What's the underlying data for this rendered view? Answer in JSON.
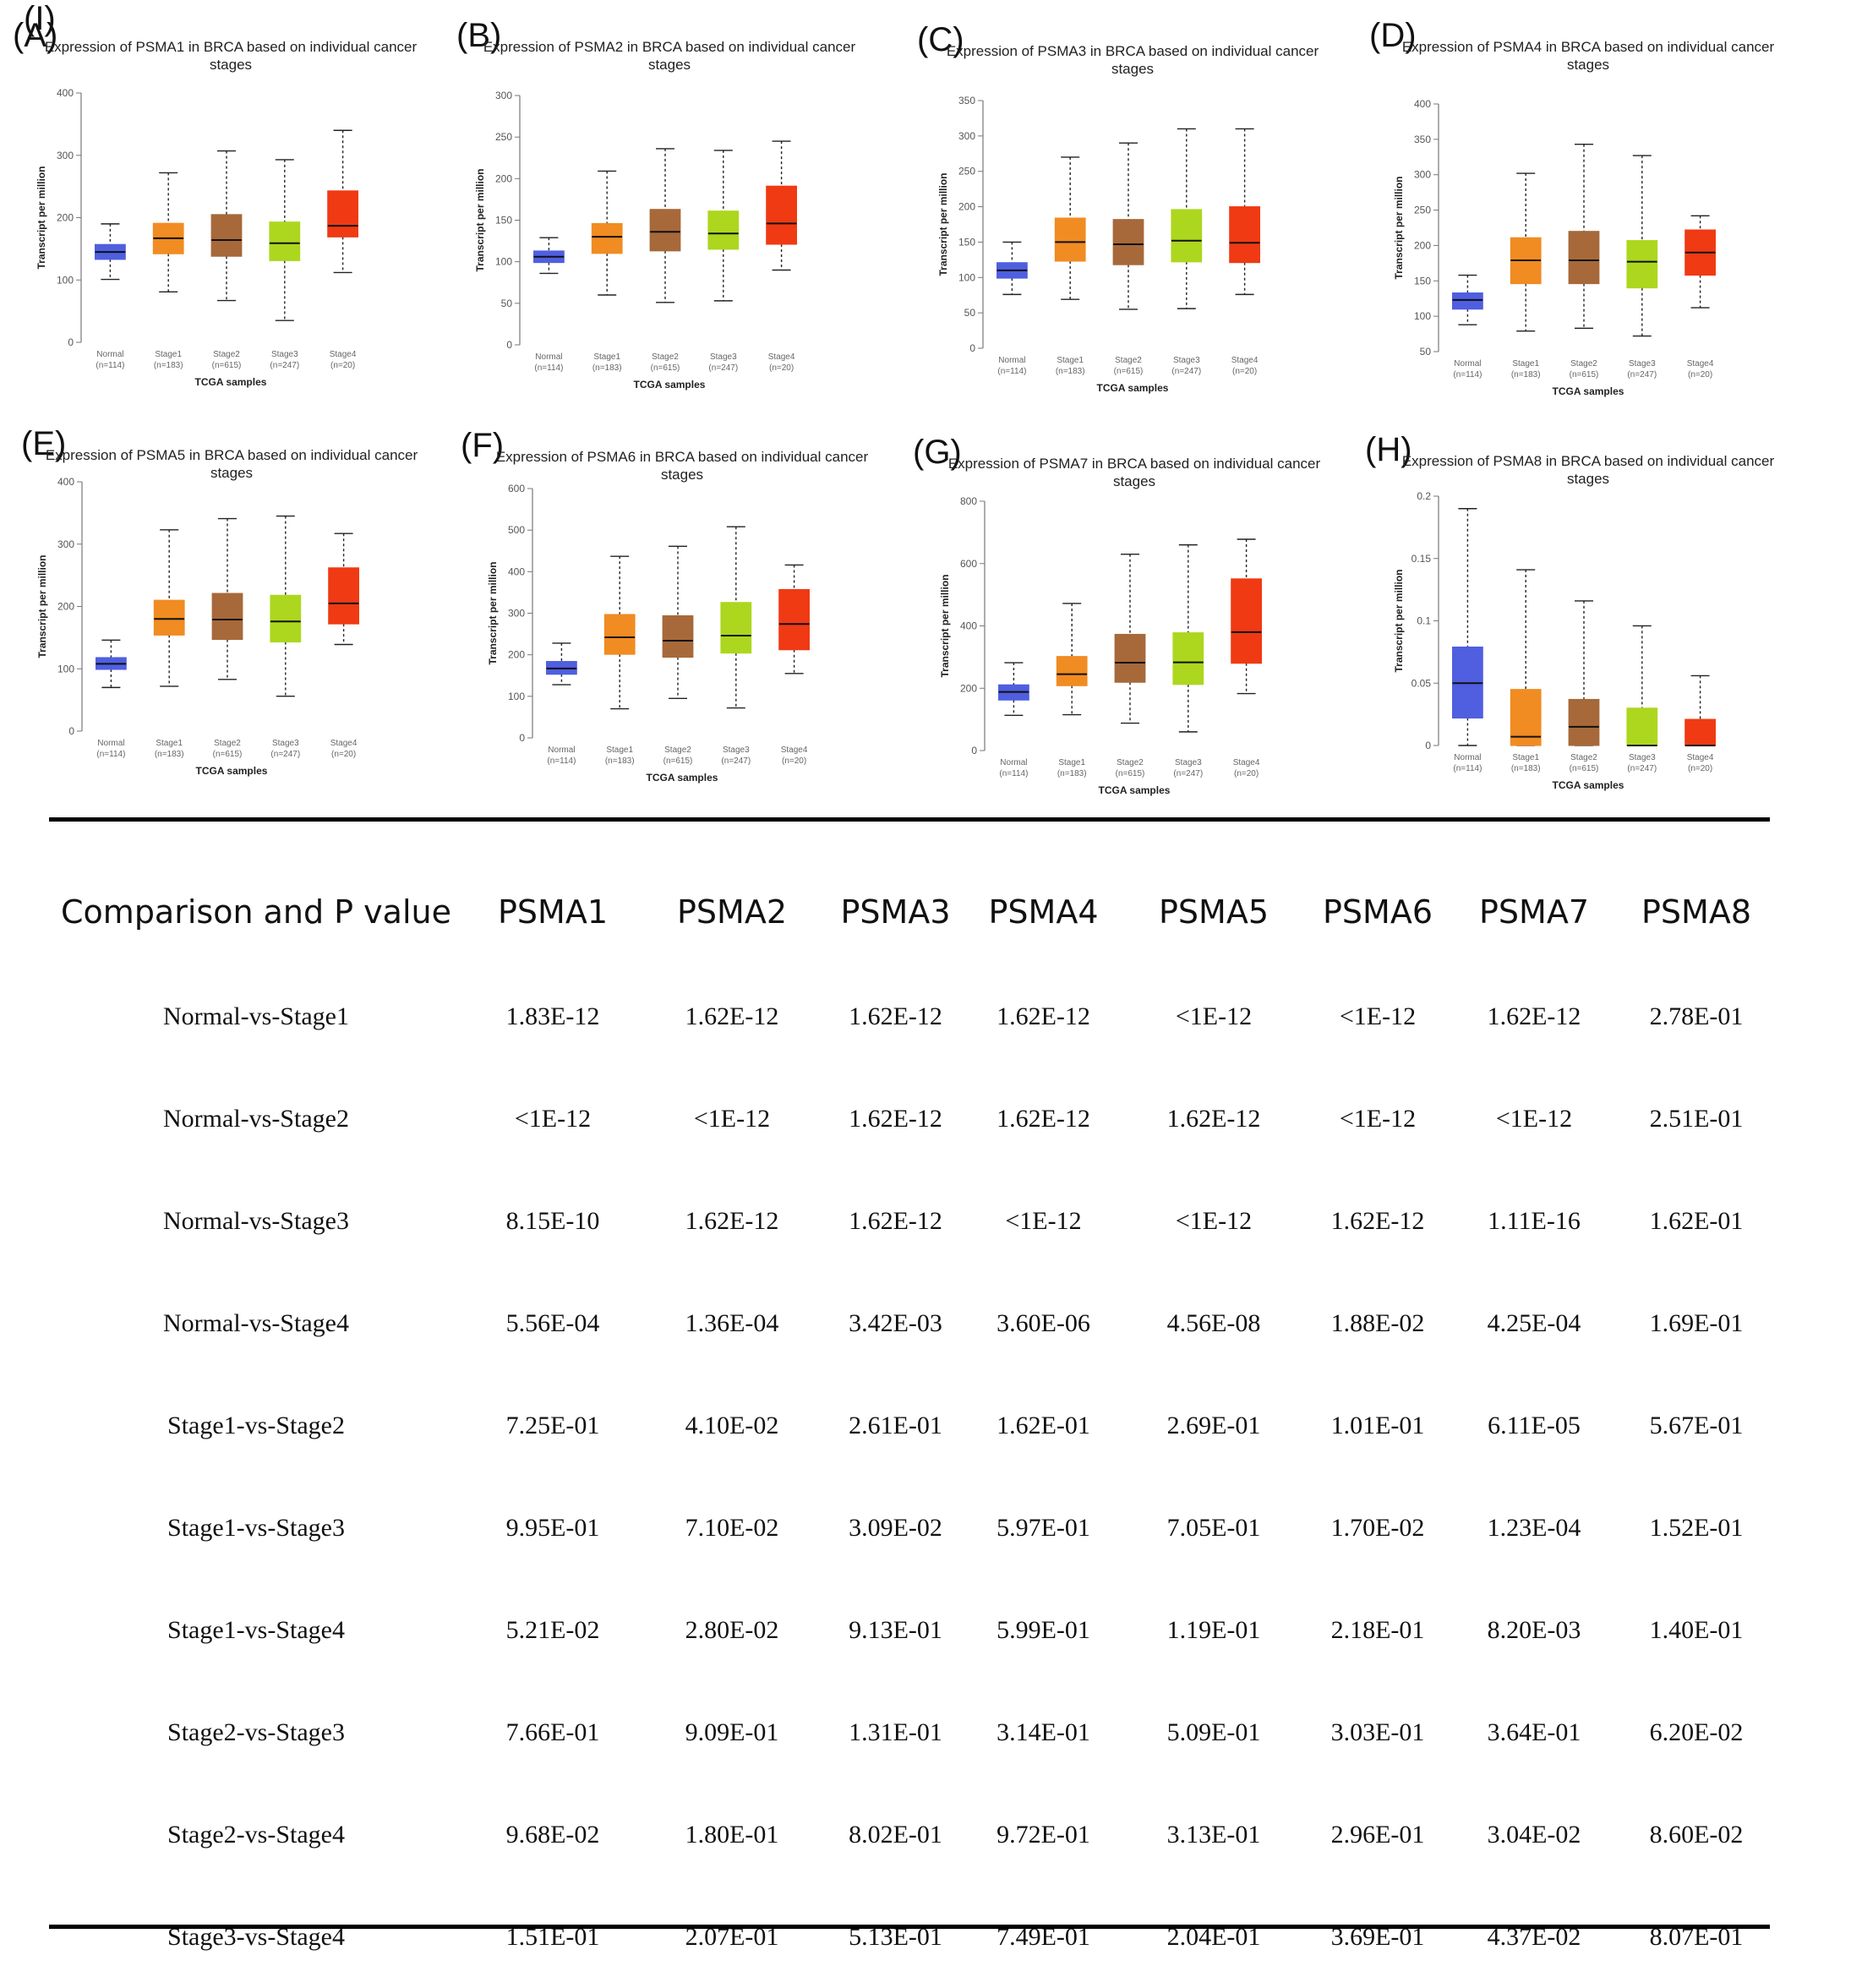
{
  "chart_data": [
    {
      "letter": "(A)",
      "type": "boxplot",
      "title": [
        "Expression of PSMA1 in BRCA based on individual cancer",
        "stages"
      ],
      "ylabel": "Transcript per million",
      "xlabel": "TCGA samples",
      "yticks": [
        0,
        100,
        200,
        300,
        400
      ],
      "ylim": [
        0,
        400
      ],
      "categories": [
        "Normal",
        "Stage1",
        "Stage2",
        "Stage3",
        "Stage4"
      ],
      "counts": [
        "(n=114)",
        "(n=183)",
        "(n=615)",
        "(n=247)",
        "(n=20)"
      ],
      "boxes": [
        {
          "min": 101,
          "q1": 133,
          "median": 145,
          "q3": 157,
          "max": 190
        },
        {
          "min": 81,
          "q1": 142,
          "median": 167,
          "q3": 191,
          "max": 272
        },
        {
          "min": 67,
          "q1": 138,
          "median": 164,
          "q3": 205,
          "max": 307
        },
        {
          "min": 35,
          "q1": 131,
          "median": 159,
          "q3": 193,
          "max": 293
        },
        {
          "min": 112,
          "q1": 169,
          "median": 187,
          "q3": 243,
          "max": 340
        }
      ]
    },
    {
      "letter": "(B)",
      "type": "boxplot",
      "title": [
        "Expression of PSMA2 in BRCA based on individual cancer",
        "stages"
      ],
      "ylabel": "Transcript per million",
      "xlabel": "TCGA samples",
      "yticks": [
        0,
        50,
        100,
        150,
        200,
        250,
        300
      ],
      "ylim": [
        0,
        300
      ],
      "categories": [
        "Normal",
        "Stage1",
        "Stage2",
        "Stage3",
        "Stage4"
      ],
      "counts": [
        "(n=114)",
        "(n=183)",
        "(n=615)",
        "(n=247)",
        "(n=20)"
      ],
      "boxes": [
        {
          "min": 86,
          "q1": 99,
          "median": 106,
          "q3": 113,
          "max": 129
        },
        {
          "min": 60,
          "q1": 110,
          "median": 130,
          "q3": 146,
          "max": 209
        },
        {
          "min": 51,
          "q1": 113,
          "median": 136,
          "q3": 163,
          "max": 236
        },
        {
          "min": 53,
          "q1": 115,
          "median": 134,
          "q3": 161,
          "max": 234
        },
        {
          "min": 90,
          "q1": 121,
          "median": 146,
          "q3": 191,
          "max": 245
        }
      ]
    },
    {
      "letter": "(C)",
      "type": "boxplot",
      "title": [
        "Expression of PSMA3 in BRCA based on individual cancer",
        "stages"
      ],
      "ylabel": "Transcript per million",
      "xlabel": "TCGA samples",
      "yticks": [
        0,
        50,
        100,
        150,
        200,
        250,
        300,
        350
      ],
      "ylim": [
        0,
        350
      ],
      "categories": [
        "Normal",
        "Stage1",
        "Stage2",
        "Stage3",
        "Stage4"
      ],
      "counts": [
        "(n=114)",
        "(n=183)",
        "(n=615)",
        "(n=247)",
        "(n=20)"
      ],
      "boxes": [
        {
          "min": 76,
          "q1": 99,
          "median": 110,
          "q3": 121,
          "max": 150
        },
        {
          "min": 69,
          "q1": 123,
          "median": 150,
          "q3": 184,
          "max": 270
        },
        {
          "min": 55,
          "q1": 118,
          "median": 147,
          "q3": 182,
          "max": 290
        },
        {
          "min": 56,
          "q1": 122,
          "median": 152,
          "q3": 196,
          "max": 310
        },
        {
          "min": 76,
          "q1": 121,
          "median": 149,
          "q3": 200,
          "max": 310
        }
      ]
    },
    {
      "letter": "(D)",
      "type": "boxplot",
      "title": [
        "Expression of PSMA4 in BRCA based on individual cancer",
        "stages"
      ],
      "ylabel": "Transcript per million",
      "xlabel": "TCGA samples",
      "yticks": [
        50,
        100,
        150,
        200,
        250,
        300,
        350,
        400
      ],
      "ylim": [
        50,
        400
      ],
      "categories": [
        "Normal",
        "Stage1",
        "Stage2",
        "Stage3",
        "Stage4"
      ],
      "counts": [
        "(n=114)",
        "(n=183)",
        "(n=615)",
        "(n=247)",
        "(n=20)"
      ],
      "boxes": [
        {
          "min": 88,
          "q1": 110,
          "median": 123,
          "q3": 133,
          "max": 158
        },
        {
          "min": 79,
          "q1": 146,
          "median": 179,
          "q3": 211,
          "max": 302
        },
        {
          "min": 83,
          "q1": 146,
          "median": 179,
          "q3": 220,
          "max": 343
        },
        {
          "min": 72,
          "q1": 140,
          "median": 177,
          "q3": 207,
          "max": 327
        },
        {
          "min": 112,
          "q1": 158,
          "median": 190,
          "q3": 222,
          "max": 242
        }
      ]
    },
    {
      "letter": "(E)",
      "type": "boxplot",
      "title": [
        "Expression of PSMA5 in BRCA based on individual cancer",
        "stages"
      ],
      "ylabel": "Transcript per million",
      "xlabel": "TCGA samples",
      "yticks": [
        0,
        100,
        200,
        300,
        400
      ],
      "ylim": [
        0,
        400
      ],
      "categories": [
        "Normal",
        "Stage1",
        "Stage2",
        "Stage3",
        "Stage4"
      ],
      "counts": [
        "(n=114)",
        "(n=183)",
        "(n=615)",
        "(n=247)",
        "(n=20)"
      ],
      "boxes": [
        {
          "min": 70,
          "q1": 99,
          "median": 108,
          "q3": 118,
          "max": 146
        },
        {
          "min": 72,
          "q1": 154,
          "median": 180,
          "q3": 210,
          "max": 323
        },
        {
          "min": 83,
          "q1": 147,
          "median": 179,
          "q3": 221,
          "max": 341
        },
        {
          "min": 56,
          "q1": 143,
          "median": 176,
          "q3": 218,
          "max": 345
        },
        {
          "min": 139,
          "q1": 172,
          "median": 205,
          "q3": 262,
          "max": 317
        }
      ]
    },
    {
      "letter": "(F)",
      "type": "boxplot",
      "title": [
        "Expression of PSMA6 in BRCA based on individual cancer",
        "stages"
      ],
      "ylabel": "Transcript per million",
      "xlabel": "TCGA samples",
      "yticks": [
        0,
        100,
        200,
        300,
        400,
        500,
        600
      ],
      "ylim": [
        0,
        600
      ],
      "categories": [
        "Normal",
        "Stage1",
        "Stage2",
        "Stage3",
        "Stage4"
      ],
      "counts": [
        "(n=114)",
        "(n=183)",
        "(n=615)",
        "(n=247)",
        "(n=20)"
      ],
      "boxes": [
        {
          "min": 128,
          "q1": 153,
          "median": 167,
          "q3": 184,
          "max": 228
        },
        {
          "min": 70,
          "q1": 201,
          "median": 242,
          "q3": 297,
          "max": 437
        },
        {
          "min": 95,
          "q1": 194,
          "median": 234,
          "q3": 294,
          "max": 461
        },
        {
          "min": 72,
          "q1": 204,
          "median": 246,
          "q3": 326,
          "max": 508
        },
        {
          "min": 155,
          "q1": 212,
          "median": 274,
          "q3": 357,
          "max": 416
        }
      ]
    },
    {
      "letter": "(G)",
      "type": "boxplot",
      "title": [
        "Expression of PSMA7 in BRCA based on individual cancer",
        "stages"
      ],
      "ylabel": "Transcript per million",
      "xlabel": "TCGA samples",
      "yticks": [
        0,
        200,
        400,
        600,
        800
      ],
      "ylim": [
        0,
        800
      ],
      "categories": [
        "Normal",
        "Stage1",
        "Stage2",
        "Stage3",
        "Stage4"
      ],
      "counts": [
        "(n=114)",
        "(n=183)",
        "(n=615)",
        "(n=247)",
        "(n=20)"
      ],
      "boxes": [
        {
          "min": 113,
          "q1": 162,
          "median": 188,
          "q3": 211,
          "max": 282
        },
        {
          "min": 115,
          "q1": 208,
          "median": 245,
          "q3": 302,
          "max": 472
        },
        {
          "min": 88,
          "q1": 219,
          "median": 282,
          "q3": 373,
          "max": 630
        },
        {
          "min": 60,
          "q1": 212,
          "median": 283,
          "q3": 378,
          "max": 660
        },
        {
          "min": 183,
          "q1": 280,
          "median": 380,
          "q3": 551,
          "max": 678
        }
      ]
    },
    {
      "letter": "(H)",
      "type": "boxplot",
      "title": [
        "Expression of PSMA8 in BRCA based on individual cancer",
        "stages"
      ],
      "ylabel": "Transcript per million",
      "xlabel": "TCGA samples",
      "yticks": [
        0,
        0.05,
        0.1,
        0.15,
        0.2
      ],
      "ylim": [
        0,
        0.2
      ],
      "categories": [
        "Normal",
        "Stage1",
        "Stage2",
        "Stage3",
        "Stage4"
      ],
      "counts": [
        "(n=114)",
        "(n=183)",
        "(n=615)",
        "(n=247)",
        "(n=20)"
      ],
      "boxes": [
        {
          "min": 0,
          "q1": 0.022,
          "median": 0.05,
          "q3": 0.079,
          "max": 0.19
        },
        {
          "min": 0,
          "q1": 0,
          "median": 0.007,
          "q3": 0.045,
          "max": 0.141
        },
        {
          "min": 0,
          "q1": 0,
          "median": 0.015,
          "q3": 0.037,
          "max": 0.116
        },
        {
          "min": 0,
          "q1": 0,
          "median": 0,
          "q3": 0.03,
          "max": 0.096
        },
        {
          "min": 0,
          "q1": 0,
          "median": 0,
          "q3": 0.021,
          "max": 0.056
        }
      ]
    }
  ],
  "colors": {
    "Normal": "#4f5fe0",
    "Stage1": "#f08c22",
    "Stage2": "#a7693a",
    "Stage3": "#acd71e",
    "Stage4": "#ef3a14"
  },
  "table": {
    "letter": "(I)",
    "headers": [
      "Comparison and P value",
      "PSMA1",
      "PSMA2",
      "PSMA3",
      "PSMA4",
      "PSMA5",
      "PSMA6",
      "PSMA7",
      "PSMA8"
    ],
    "rows": [
      [
        "Normal-vs-Stage1",
        "1.83E-12",
        "1.62E-12",
        "1.62E-12",
        "1.62E-12",
        "<1E-12",
        "<1E-12",
        "1.62E-12",
        "2.78E-01"
      ],
      [
        "Normal-vs-Stage2",
        "<1E-12",
        "<1E-12",
        "1.62E-12",
        "1.62E-12",
        "1.62E-12",
        "<1E-12",
        "<1E-12",
        "2.51E-01"
      ],
      [
        "Normal-vs-Stage3",
        "8.15E-10",
        "1.62E-12",
        "1.62E-12",
        "<1E-12",
        "<1E-12",
        "1.62E-12",
        "1.11E-16",
        "1.62E-01"
      ],
      [
        "Normal-vs-Stage4",
        "5.56E-04",
        "1.36E-04",
        "3.42E-03",
        "3.60E-06",
        "4.56E-08",
        "1.88E-02",
        "4.25E-04",
        "1.69E-01"
      ],
      [
        "Stage1-vs-Stage2",
        "7.25E-01",
        "4.10E-02",
        "2.61E-01",
        "1.62E-01",
        "2.69E-01",
        "1.01E-01",
        "6.11E-05",
        "5.67E-01"
      ],
      [
        "Stage1-vs-Stage3",
        "9.95E-01",
        "7.10E-02",
        "3.09E-02",
        "5.97E-01",
        "7.05E-01",
        "1.70E-02",
        "1.23E-04",
        "1.52E-01"
      ],
      [
        "Stage1-vs-Stage4",
        "5.21E-02",
        "2.80E-02",
        "9.13E-01",
        "5.99E-01",
        "1.19E-01",
        "2.18E-01",
        "8.20E-03",
        "1.40E-01"
      ],
      [
        "Stage2-vs-Stage3",
        "7.66E-01",
        "9.09E-01",
        "1.31E-01",
        "3.14E-01",
        "5.09E-01",
        "3.03E-01",
        "3.64E-01",
        "6.20E-02"
      ],
      [
        "Stage2-vs-Stage4",
        "9.68E-02",
        "1.80E-01",
        "8.02E-01",
        "9.72E-01",
        "3.13E-01",
        "2.96E-01",
        "3.04E-02",
        "8.60E-02"
      ],
      [
        "Stage3-vs-Stage4",
        "1.51E-01",
        "2.07E-01",
        "5.13E-01",
        "7.49E-01",
        "2.04E-01",
        "3.69E-01",
        "4.37E-02",
        "8.07E-01"
      ]
    ]
  }
}
